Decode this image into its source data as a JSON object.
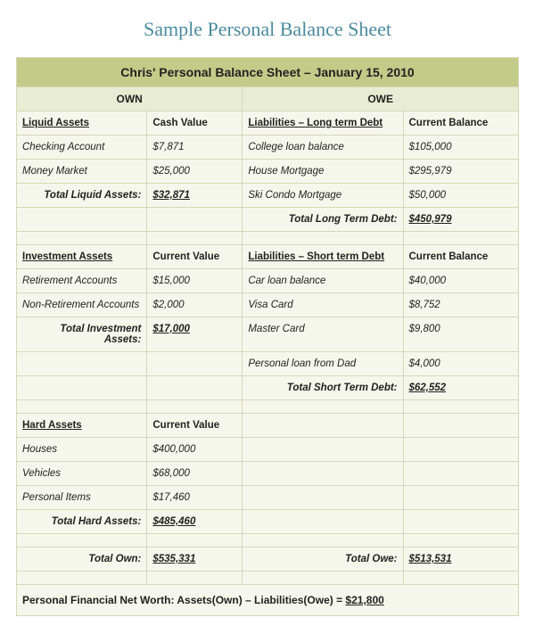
{
  "page_title": "Sample Personal Balance Sheet",
  "sheet_title": "Chris' Personal Balance Sheet – January 15, 2010",
  "own_header": "OWN",
  "owe_header": "OWE",
  "colors": {
    "title_bar": "#c3cb88",
    "subheader": "#e9ecd4",
    "cell_bg": "#f6f7ec",
    "border": "#d4d9b8",
    "page_title": "#4a8a9e"
  },
  "sections": {
    "liquid_assets": {
      "label": "Liquid Assets",
      "value_header": "Cash Value",
      "rows": [
        {
          "label": "Checking Account",
          "value": "$7,871"
        },
        {
          "label": "Money Market",
          "value": "$25,000"
        }
      ],
      "total_label": "Total Liquid Assets:",
      "total_value": "$32,871"
    },
    "investment_assets": {
      "label": "Investment Assets",
      "value_header": "Current Value",
      "rows": [
        {
          "label": "Retirement Accounts",
          "value": "$15,000"
        },
        {
          "label": "Non-Retirement Accounts",
          "value": "$2,000"
        }
      ],
      "total_label": "Total Investment Assets:",
      "total_value": "$17,000"
    },
    "hard_assets": {
      "label": "Hard Assets",
      "value_header": "Current Value",
      "rows": [
        {
          "label": "Houses",
          "value": "$400,000"
        },
        {
          "label": "Vehicles",
          "value": "$68,000"
        },
        {
          "label": "Personal Items",
          "value": "$17,460"
        }
      ],
      "total_label": "Total Hard Assets:",
      "total_value": "$485,460"
    },
    "long_term_debt": {
      "label": "Liabilities – Long term Debt",
      "value_header": "Current Balance",
      "rows": [
        {
          "label": "College loan balance",
          "value": "$105,000"
        },
        {
          "label": "House Mortgage",
          "value": "$295,979"
        },
        {
          "label": "Ski Condo Mortgage",
          "value": "$50,000"
        }
      ],
      "total_label": "Total Long Term Debt:",
      "total_value": "$450,979"
    },
    "short_term_debt": {
      "label": "Liabilities – Short  term Debt",
      "value_header": "Current Balance",
      "rows": [
        {
          "label": "Car loan balance",
          "value": "$40,000"
        },
        {
          "label": "Visa Card",
          "value": "$8,752"
        },
        {
          "label": "Master Card",
          "value": "$9,800"
        },
        {
          "label": "Personal loan from Dad",
          "value": "$4,000"
        }
      ],
      "total_label": "Total Short Term Debt:",
      "total_value": "$62,552"
    }
  },
  "grand_totals": {
    "own_label": "Total Own:",
    "own_value": "$535,331",
    "owe_label": "Total Owe:",
    "owe_value": "$513,531"
  },
  "networth": {
    "prefix": "Personal Financial Net Worth: Assets(Own) – Liabilities(Owe)  =  ",
    "amount": "$21,800"
  }
}
